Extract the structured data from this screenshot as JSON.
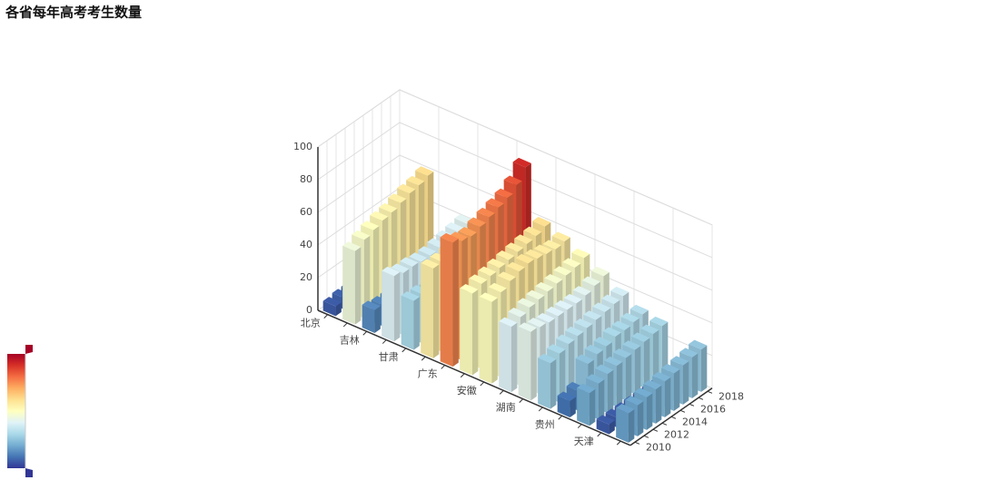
{
  "chart_data": {
    "type": "bar3d",
    "title": "各省每年高考考生数量",
    "categories": [
      "北京",
      null,
      "吉林",
      null,
      "甘肃",
      null,
      "广东",
      null,
      "安徽",
      null,
      "湖南",
      null,
      "贵州",
      null,
      "天津",
      null
    ],
    "years": [
      "2010",
      null,
      "2012",
      null,
      "2014",
      null,
      "2016",
      null,
      "2018"
    ],
    "values": [
      [
        6,
        7,
        7,
        7,
        6,
        6,
        6,
        6,
        6
      ],
      [
        45,
        48,
        50,
        52,
        53,
        55,
        57,
        58,
        60
      ],
      [
        14,
        13,
        13,
        12,
        12,
        12,
        12,
        12,
        12
      ],
      [
        40,
        38,
        38,
        37,
        37,
        38,
        39,
        40,
        41
      ],
      [
        30,
        30,
        29,
        29,
        29,
        28,
        28,
        28,
        28
      ],
      [
        55,
        55,
        56,
        56,
        57,
        57,
        58,
        59,
        60
      ],
      [
        76,
        73,
        72,
        74,
        76,
        78,
        80,
        84,
        91
      ],
      [
        50,
        52,
        53,
        54,
        55,
        56,
        57,
        58,
        60
      ],
      [
        50,
        52,
        55,
        57,
        58,
        57,
        56,
        55,
        56
      ],
      [
        40,
        42,
        44,
        45,
        46,
        47,
        48,
        49,
        51
      ],
      [
        42,
        41,
        40,
        40,
        40,
        40,
        41,
        43,
        45
      ],
      [
        28,
        30,
        32,
        33,
        34,
        35,
        36,
        37,
        38
      ],
      [
        10,
        12,
        25,
        27,
        28,
        30,
        30,
        31,
        32
      ],
      [
        20,
        22,
        24,
        25,
        26,
        27,
        28,
        29,
        30
      ],
      [
        6,
        6,
        6,
        6,
        6,
        6,
        6,
        6,
        6
      ],
      [
        18,
        19,
        20,
        21,
        22,
        23,
        24,
        25,
        26
      ]
    ],
    "zlim": [
      0,
      100
    ],
    "zticks": [
      0,
      20,
      40,
      60,
      80,
      100
    ],
    "grid": true,
    "visual_map": {
      "min": 0,
      "max": 100,
      "colors": [
        "#313695",
        "#4575b4",
        "#74add1",
        "#abd9e9",
        "#e0f3f8",
        "#ffffbf",
        "#fee090",
        "#fdae61",
        "#f46d43",
        "#d73027",
        "#a50026"
      ]
    }
  }
}
